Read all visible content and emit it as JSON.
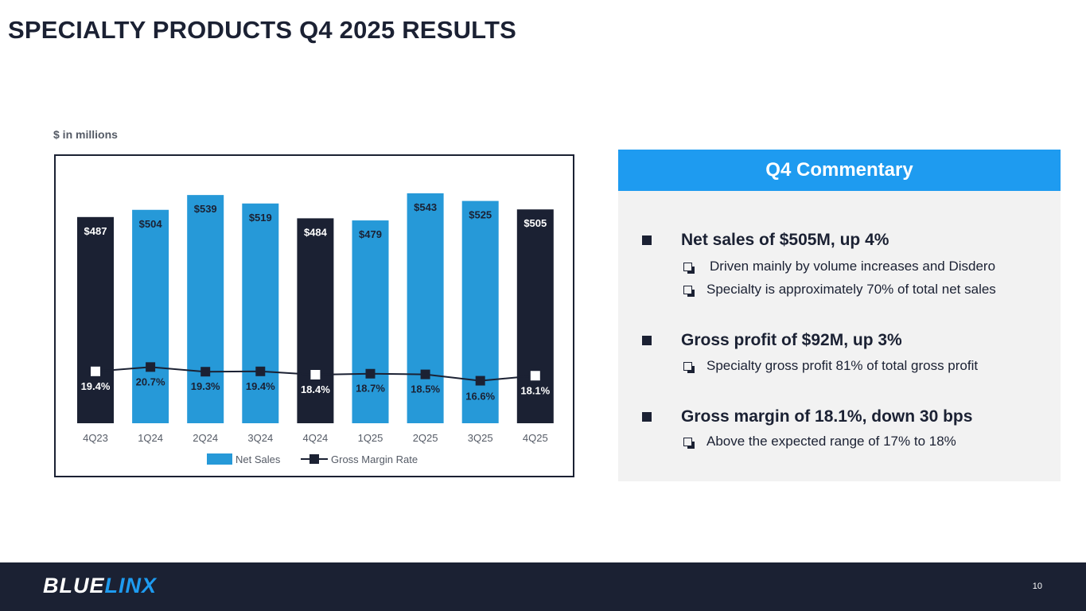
{
  "slide": {
    "title": "SPECIALTY PRODUCTS Q4 2025 RESULTS",
    "units_note": "$ in millions",
    "page_number": "10"
  },
  "logo": {
    "part1": "BLUE",
    "part2": "LINX"
  },
  "colors": {
    "net_sales_light": "#2699d8",
    "net_sales_dark": "#1b2133",
    "line": "#1b2133",
    "commentary_header": "#1e9bf0"
  },
  "chart_data": {
    "type": "bar",
    "categories": [
      "4Q23",
      "1Q24",
      "2Q24",
      "3Q24",
      "4Q24",
      "1Q25",
      "2Q25",
      "3Q25",
      "4Q25"
    ],
    "series": [
      {
        "name": "Net Sales",
        "kind": "bar",
        "values": [
          487,
          504,
          539,
          519,
          484,
          479,
          543,
          525,
          505
        ],
        "value_labels": [
          "$487",
          "$504",
          "$539",
          "$519",
          "$484",
          "$479",
          "$543",
          "$525",
          "$505"
        ],
        "dark_highlight": [
          true,
          false,
          false,
          false,
          true,
          false,
          false,
          false,
          true
        ]
      },
      {
        "name": "Gross Margin Rate",
        "kind": "line",
        "values": [
          19.4,
          20.7,
          19.3,
          19.4,
          18.4,
          18.7,
          18.5,
          16.6,
          18.1
        ],
        "value_labels": [
          "19.4%",
          "20.7%",
          "19.3%",
          "19.4%",
          "18.4%",
          "18.7%",
          "18.5%",
          "16.6%",
          "18.1%"
        ]
      }
    ],
    "legend": [
      "Net Sales",
      "Gross Margin Rate"
    ],
    "legend_position": "bottom",
    "ylim_bars": [
      0,
      543
    ],
    "ylim_line": [
      0,
      100
    ]
  },
  "commentary": {
    "title": "Q4 Commentary",
    "bullets": [
      {
        "text": "Net sales of $505M, up 4%",
        "subs": [
          "Driven mainly by volume increases and Disdero",
          "Specialty is approximately 70% of total net sales"
        ]
      },
      {
        "text": "Gross profit of $92M, up 3%",
        "subs": [
          "Specialty gross profit 81% of total gross profit"
        ]
      },
      {
        "text": "Gross margin of 18.1%, down 30 bps",
        "subs": [
          "Above the expected range of 17% to 18%"
        ]
      }
    ]
  }
}
